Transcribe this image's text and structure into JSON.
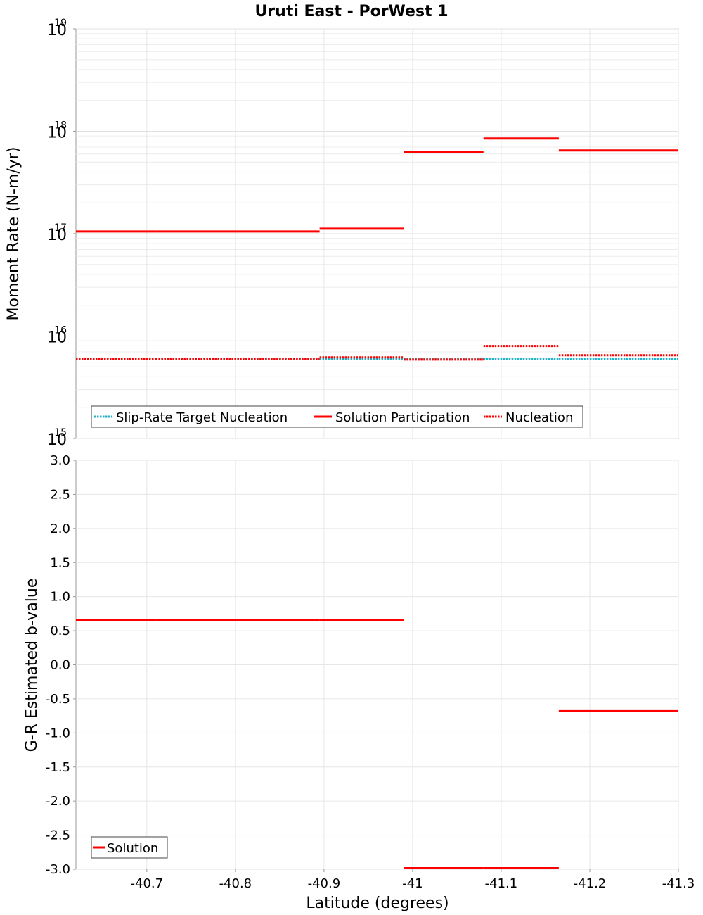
{
  "chart_data": {
    "type": "line",
    "title": "Uruti East - PorWest 1",
    "xlabel": "Latitude (degrees)",
    "x_ticks": [
      -40.7,
      -40.8,
      -40.9,
      -41,
      -41.1,
      -41.2,
      -41.3
    ],
    "x_tick_labels": [
      "-40.7",
      "-40.8",
      "-40.9",
      "-41",
      "-41.1",
      "-41.2",
      "-41.3"
    ],
    "xlim": [
      -40.62,
      -41.3
    ],
    "x_axis_reversed": true,
    "colors": {
      "target": "#1fb2c8",
      "solution": "#ff0000"
    },
    "panels": [
      {
        "id": "moment",
        "ylabel": "Moment Rate (N-m/yr)",
        "yscale": "log",
        "ylim_exponents": [
          15,
          19
        ],
        "y_tick_base": "10",
        "y_tick_exponents": [
          "19",
          "18",
          "17",
          "16",
          "15"
        ],
        "legend": {
          "position": "bottom-left",
          "entries": [
            {
              "label": "Slip-Rate Target Nucleation",
              "color": "#1fb2c8",
              "style": "dotted"
            },
            {
              "label": "Solution Participation",
              "color": "#ff0000",
              "style": "solid"
            },
            {
              "label": "Nucleation",
              "color": "#ff0000",
              "style": "dotted"
            }
          ]
        },
        "series": [
          {
            "name": "Slip-Rate Target Nucleation",
            "color": "#1fb2c8",
            "style": "dotted",
            "segments": [
              {
                "x": [
                  -40.62,
                  -40.71
                ],
                "y": 6000000000000000.0
              },
              {
                "x": [
                  -40.71,
                  -40.805
                ],
                "y": 6000000000000000.0
              },
              {
                "x": [
                  -40.805,
                  -40.895
                ],
                "y": 6000000000000000.0
              },
              {
                "x": [
                  -40.895,
                  -40.99
                ],
                "y": 6000000000000000.0
              },
              {
                "x": [
                  -40.99,
                  -41.08
                ],
                "y": 6000000000000000.0
              },
              {
                "x": [
                  -41.08,
                  -41.165
                ],
                "y": 6000000000000000.0
              },
              {
                "x": [
                  -41.165,
                  -41.3
                ],
                "y": 6000000000000000.0
              }
            ]
          },
          {
            "name": "Solution Participation",
            "color": "#ff0000",
            "style": "solid",
            "segments": [
              {
                "x": [
                  -40.62,
                  -40.71
                ],
                "y": 1.05e+17
              },
              {
                "x": [
                  -40.71,
                  -40.805
                ],
                "y": 1.05e+17
              },
              {
                "x": [
                  -40.805,
                  -40.895
                ],
                "y": 1.05e+17
              },
              {
                "x": [
                  -40.895,
                  -40.99
                ],
                "y": 1.12e+17
              },
              {
                "x": [
                  -40.99,
                  -41.08
                ],
                "y": 6.3e+17
              },
              {
                "x": [
                  -41.08,
                  -41.165
                ],
                "y": 8.5e+17
              },
              {
                "x": [
                  -41.165,
                  -41.3
                ],
                "y": 6.5e+17
              }
            ]
          },
          {
            "name": "Nucleation",
            "color": "#ff0000",
            "style": "dotted",
            "segments": [
              {
                "x": [
                  -40.62,
                  -40.71
                ],
                "y": 6000000000000000.0
              },
              {
                "x": [
                  -40.71,
                  -40.805
                ],
                "y": 6000000000000000.0
              },
              {
                "x": [
                  -40.805,
                  -40.895
                ],
                "y": 6000000000000000.0
              },
              {
                "x": [
                  -40.895,
                  -40.99
                ],
                "y": 6200000000000000.0
              },
              {
                "x": [
                  -40.99,
                  -41.08
                ],
                "y": 5900000000000000.0
              },
              {
                "x": [
                  -41.08,
                  -41.165
                ],
                "y": 8000000000000000.0
              },
              {
                "x": [
                  -41.165,
                  -41.3
                ],
                "y": 6500000000000000.0
              }
            ]
          }
        ]
      },
      {
        "id": "bvalue",
        "ylabel": "G-R Estimated b-value",
        "yscale": "linear",
        "ylim": [
          -3.0,
          3.0
        ],
        "y_ticks": [
          3.0,
          2.5,
          2.0,
          1.5,
          1.0,
          0.5,
          0.0,
          -0.5,
          -1.0,
          -1.5,
          -2.0,
          -2.5,
          -3.0
        ],
        "y_tick_labels": [
          "3.0",
          "2.5",
          "2.0",
          "1.5",
          "1.0",
          "0.5",
          "0.0",
          "-0.5",
          "-1.0",
          "-1.5",
          "-2.0",
          "-2.5",
          "-3.0"
        ],
        "legend": {
          "position": "bottom-left",
          "entries": [
            {
              "label": "Solution",
              "color": "#ff0000",
              "style": "solid"
            }
          ]
        },
        "series": [
          {
            "name": "Solution",
            "color": "#ff0000",
            "style": "solid",
            "segments": [
              {
                "x": [
                  -40.62,
                  -40.71
                ],
                "y": 0.66
              },
              {
                "x": [
                  -40.71,
                  -40.805
                ],
                "y": 0.66
              },
              {
                "x": [
                  -40.805,
                  -40.895
                ],
                "y": 0.66
              },
              {
                "x": [
                  -40.895,
                  -40.99
                ],
                "y": 0.65
              },
              {
                "x": [
                  -40.99,
                  -41.08
                ],
                "y": -3.0
              },
              {
                "x": [
                  -41.08,
                  -41.165
                ],
                "y": -3.0
              },
              {
                "x": [
                  -41.165,
                  -41.3
                ],
                "y": -0.68
              }
            ]
          }
        ]
      }
    ]
  }
}
